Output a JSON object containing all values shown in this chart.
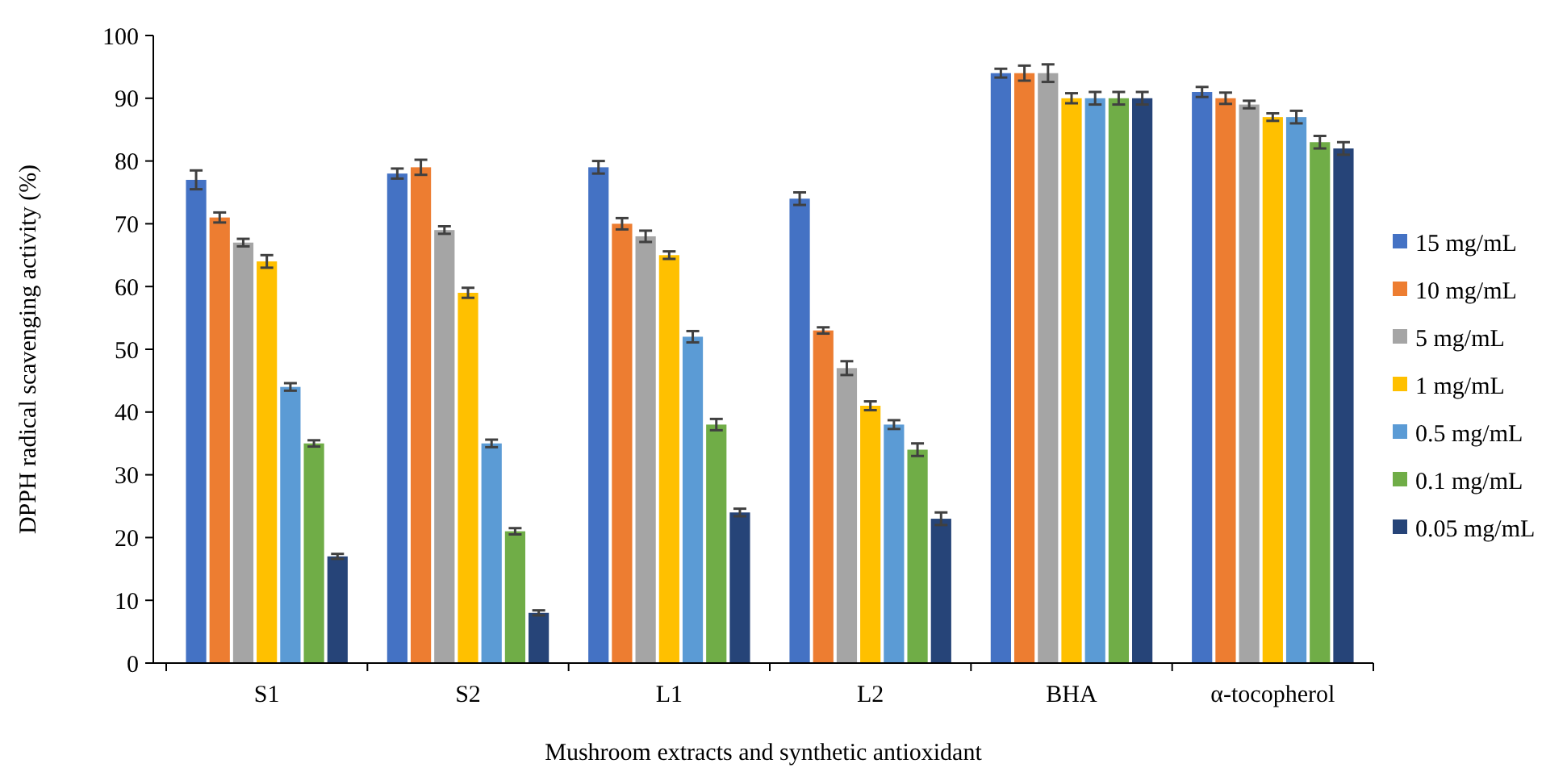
{
  "chart_data": {
    "type": "bar",
    "xlabel": "Mushroom extracts and synthetic antioxidant",
    "ylabel": "DPPH radical scavenging activity  (%)",
    "categories": [
      "S1",
      "S2",
      "L1",
      "L2",
      "BHA",
      "α-tocopherol"
    ],
    "series": [
      {
        "name": "15 mg/mL",
        "color": "#4472c4",
        "values": [
          77,
          78,
          79,
          74,
          94,
          91
        ],
        "errors": [
          1.5,
          0.8,
          1,
          1,
          0.7,
          0.8
        ]
      },
      {
        "name": "10 mg/mL",
        "color": "#ed7d31",
        "values": [
          71,
          79,
          70,
          53,
          94,
          90
        ],
        "errors": [
          0.8,
          1.2,
          0.9,
          0.5,
          1.2,
          0.9
        ]
      },
      {
        "name": "5 mg/mL",
        "color": "#a5a5a5",
        "values": [
          67,
          69,
          68,
          47,
          94,
          89
        ],
        "errors": [
          0.6,
          0.6,
          0.9,
          1.1,
          1.4,
          0.6
        ]
      },
      {
        "name": "1 mg/mL",
        "color": "#ffc000",
        "values": [
          64,
          59,
          65,
          41,
          90,
          87
        ],
        "errors": [
          1,
          0.8,
          0.6,
          0.7,
          0.8,
          0.6
        ]
      },
      {
        "name": "0.5 mg/mL",
        "color": "#5b9bd5",
        "values": [
          44,
          35,
          52,
          38,
          90,
          87
        ],
        "errors": [
          0.6,
          0.6,
          0.9,
          0.7,
          1,
          1
        ]
      },
      {
        "name": "0.1 mg/mL",
        "color": "#70ad47",
        "values": [
          35,
          21,
          38,
          34,
          90,
          83
        ],
        "errors": [
          0.5,
          0.5,
          0.9,
          1,
          1,
          1
        ]
      },
      {
        "name": "0.05 mg/mL",
        "color": "#264478",
        "values": [
          17,
          8,
          24,
          23,
          90,
          82
        ],
        "errors": [
          0.4,
          0.4,
          0.6,
          1,
          1,
          1
        ]
      }
    ],
    "ylim": [
      0,
      100
    ],
    "yticks": [
      0,
      10,
      20,
      30,
      40,
      50,
      60,
      70,
      80,
      90,
      100
    ],
    "grid": false,
    "legend": "right"
  }
}
